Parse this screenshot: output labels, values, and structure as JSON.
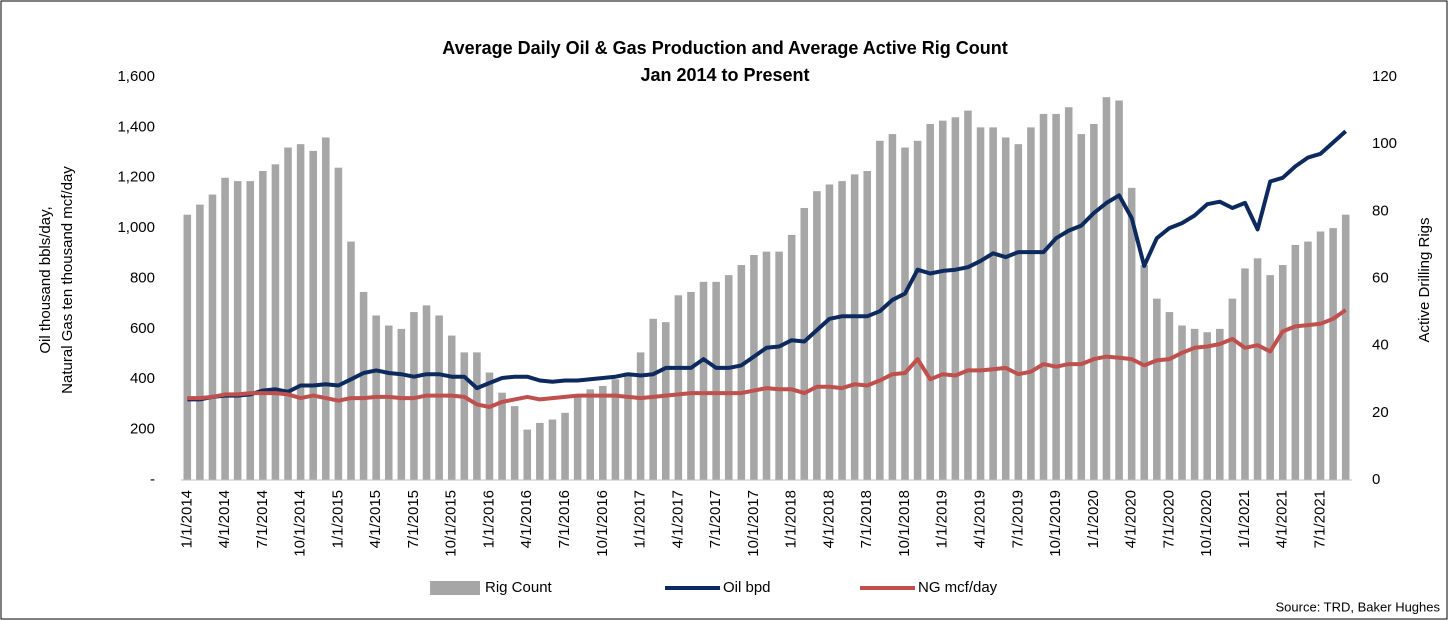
{
  "chart_data": {
    "type": "bar-line",
    "title": "Average Daily Oil & Gas Production and Average Active Rig Count",
    "subtitle": "Jan 2014 to Present",
    "y_label": [
      "Oil thousand bbls/day,",
      "Natural Gas ten thousand mcf/day"
    ],
    "y2_label": "Active Drilling Rigs",
    "source": "Source: TRD, Baker Hughes",
    "categories": [
      "1/1/2014",
      null,
      null,
      "4/1/2014",
      null,
      null,
      "7/1/2014",
      null,
      null,
      "10/1/2014",
      null,
      null,
      "1/1/2015",
      null,
      null,
      "4/1/2015",
      null,
      null,
      "7/1/2015",
      null,
      null,
      "10/1/2015",
      null,
      null,
      "1/1/2016",
      null,
      null,
      "4/1/2016",
      null,
      null,
      "7/1/2016",
      null,
      null,
      "10/1/2016",
      null,
      null,
      "1/1/2017",
      null,
      null,
      "4/1/2017",
      null,
      null,
      "7/1/2017",
      null,
      null,
      "10/1/2017",
      null,
      null,
      "1/1/2018",
      null,
      null,
      "4/1/2018",
      null,
      null,
      "7/1/2018",
      null,
      null,
      "10/1/2018",
      null,
      null,
      "1/1/2019",
      null,
      null,
      "4/1/2019",
      null,
      null,
      "7/1/2019",
      null,
      null,
      "10/1/2019",
      null,
      null,
      "1/1/2020",
      null,
      null,
      "4/1/2020",
      null,
      null,
      "7/1/2020",
      null,
      null,
      "10/1/2020",
      null,
      null,
      "1/1/2021",
      null,
      null,
      "4/1/2021",
      null,
      null,
      "7/1/2021",
      null,
      null
    ],
    "series": [
      {
        "name": "Rig Count",
        "kind": "bar",
        "axis": "y2",
        "color": "#a6a6a6",
        "values": [
          79,
          82,
          85,
          90,
          89,
          89,
          92,
          94,
          99,
          100,
          98,
          102,
          93,
          71,
          56,
          49,
          46,
          45,
          50,
          52,
          49,
          43,
          38,
          38,
          32,
          26,
          22,
          15,
          17,
          18,
          20,
          25,
          27,
          28,
          30,
          32,
          38,
          48,
          47,
          55,
          56,
          59,
          59,
          61,
          64,
          67,
          68,
          68,
          73,
          81,
          86,
          88,
          89,
          91,
          92,
          101,
          103,
          99,
          101,
          106,
          107,
          108,
          110,
          105,
          105,
          102,
          100,
          105,
          109,
          109,
          111,
          103,
          106,
          114,
          113,
          87,
          64,
          54,
          50,
          46,
          45,
          44,
          45,
          54,
          63,
          66,
          61,
          64,
          70,
          71,
          74,
          75,
          79
        ]
      },
      {
        "name": "Oil bpd",
        "kind": "line",
        "color": "#0d2a5e",
        "values": [
          320,
          320,
          330,
          335,
          335,
          340,
          355,
          360,
          350,
          375,
          375,
          380,
          375,
          400,
          425,
          435,
          425,
          420,
          410,
          420,
          420,
          410,
          410,
          365,
          385,
          405,
          410,
          410,
          395,
          390,
          395,
          395,
          400,
          405,
          410,
          420,
          415,
          420,
          445,
          445,
          445,
          480,
          445,
          445,
          455,
          490,
          525,
          530,
          555,
          550,
          595,
          640,
          650,
          650,
          650,
          670,
          715,
          740,
          835,
          820,
          830,
          835,
          845,
          870,
          900,
          885,
          905,
          905,
          905,
          960,
          990,
          1010,
          1060,
          1100,
          1130,
          1040,
          850,
          960,
          1000,
          1020,
          1050,
          1095,
          1105,
          1080,
          1100,
          995,
          1185,
          1200,
          1245,
          1280,
          1295,
          1340,
          1385
        ]
      },
      {
        "name": "NG mcf/day",
        "kind": "line",
        "color": "#c0504d",
        "values": [
          325,
          325,
          330,
          340,
          340,
          345,
          345,
          345,
          340,
          325,
          335,
          325,
          315,
          325,
          325,
          330,
          330,
          325,
          325,
          335,
          335,
          335,
          330,
          300,
          290,
          310,
          320,
          330,
          320,
          325,
          330,
          335,
          335,
          335,
          335,
          330,
          325,
          330,
          335,
          340,
          345,
          345,
          345,
          345,
          345,
          355,
          365,
          360,
          360,
          345,
          370,
          370,
          365,
          380,
          375,
          395,
          420,
          425,
          480,
          400,
          420,
          415,
          435,
          435,
          440,
          445,
          420,
          430,
          460,
          450,
          460,
          460,
          480,
          490,
          485,
          480,
          455,
          475,
          480,
          505,
          525,
          530,
          540,
          560,
          525,
          535,
          510,
          590,
          610,
          615,
          620,
          640,
          675
        ]
      }
    ],
    "ylim": [
      0,
      1600
    ],
    "yticks": [
      {
        "value": 0,
        "label": "-"
      },
      200,
      400,
      600,
      800,
      {
        "value": 1000,
        "label": "1,000"
      },
      {
        "value": 1200,
        "label": "1,200"
      },
      {
        "value": 1400,
        "label": "1,400"
      },
      {
        "value": 1600,
        "label": "1,600"
      }
    ],
    "y2lim": [
      0,
      120
    ],
    "y2ticks": [
      0,
      20,
      40,
      60,
      80,
      100,
      120
    ],
    "legend": "bottom"
  }
}
